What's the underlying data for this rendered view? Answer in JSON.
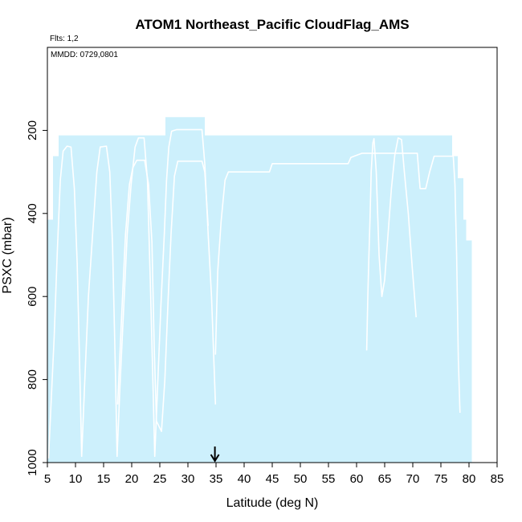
{
  "chart_data": {
    "type": "area",
    "title": "ATOM1 Northeast_Pacific CloudFlag_AMS",
    "subtitle": "Flts: 1,2",
    "annotation": "MMDD: 0729,0801",
    "xlabel": "Latitude (deg N)",
    "ylabel": "PSXC (mbar)",
    "xlim": [
      5,
      85
    ],
    "ylim": [
      1000,
      0
    ],
    "y_inverted": true,
    "xticks": [
      5,
      10,
      15,
      20,
      25,
      30,
      35,
      40,
      45,
      50,
      55,
      60,
      65,
      70,
      75,
      80,
      85
    ],
    "yticks": [
      200,
      400,
      600,
      800,
      1000
    ],
    "grid": false,
    "colors": {
      "cloud_fill": "#cdf0fc",
      "flight_track": "#ffffff",
      "marker": "#000000"
    },
    "cloud_columns": [
      {
        "x0": 5.0,
        "x1": 6.0,
        "top": 415
      },
      {
        "x0": 6.0,
        "x1": 7.0,
        "top": 262
      },
      {
        "x0": 7.0,
        "x1": 26.0,
        "top": 212
      },
      {
        "x0": 26.0,
        "x1": 33.0,
        "top": 168
      },
      {
        "x0": 33.0,
        "x1": 77.0,
        "top": 212
      },
      {
        "x0": 77.0,
        "x1": 78.0,
        "top": 262
      },
      {
        "x0": 78.0,
        "x1": 79.0,
        "top": 315
      },
      {
        "x0": 79.0,
        "x1": 79.5,
        "top": 415
      },
      {
        "x0": 79.5,
        "x1": 80.5,
        "top": 465
      }
    ],
    "series": [
      {
        "values": [
          [
            5.2,
            990
          ],
          [
            6.2,
            700
          ],
          [
            6.8,
            480
          ],
          [
            7.3,
            320
          ],
          [
            7.8,
            250
          ],
          [
            8.5,
            238
          ],
          [
            9.2,
            240
          ],
          [
            9.8,
            340
          ],
          [
            10.3,
            520
          ],
          [
            10.8,
            800
          ],
          [
            11.1,
            985
          ],
          [
            11.6,
            820
          ],
          [
            12.3,
            600
          ],
          [
            13.2,
            420
          ],
          [
            13.8,
            300
          ],
          [
            14.4,
            240
          ],
          [
            15.5,
            238
          ],
          [
            16.1,
            300
          ],
          [
            16.6,
            480
          ],
          [
            17.1,
            780
          ],
          [
            17.4,
            985
          ],
          [
            17.9,
            820
          ],
          [
            18.6,
            620
          ],
          [
            19.2,
            450
          ],
          [
            19.9,
            330
          ],
          [
            20.6,
            240
          ],
          [
            21.2,
            218
          ],
          [
            22.2,
            218
          ],
          [
            22.8,
            320
          ],
          [
            23.3,
            560
          ],
          [
            23.8,
            820
          ],
          [
            24.1,
            985
          ],
          [
            24.6,
            820
          ],
          [
            25.2,
            620
          ],
          [
            25.8,
            450
          ],
          [
            26.2,
            320
          ],
          [
            26.6,
            240
          ],
          [
            27.1,
            202
          ],
          [
            28.0,
            198
          ],
          [
            32.5,
            198
          ],
          [
            33.0,
            280
          ],
          [
            33.6,
            450
          ],
          [
            34.2,
            600
          ],
          [
            34.9,
            860
          ]
        ]
      },
      {
        "values": [
          [
            17.5,
            860
          ],
          [
            18.3,
            620
          ],
          [
            18.9,
            450
          ],
          [
            19.6,
            330
          ],
          [
            20.2,
            290
          ],
          [
            20.9,
            272
          ],
          [
            22.3,
            272
          ],
          [
            23.0,
            330
          ],
          [
            23.6,
            470
          ],
          [
            24.0,
            720
          ],
          [
            24.4,
            900
          ],
          [
            25.3,
            925
          ],
          [
            25.9,
            800
          ],
          [
            26.5,
            600
          ],
          [
            27.0,
            450
          ],
          [
            27.6,
            310
          ],
          [
            28.2,
            274
          ],
          [
            32.5,
            274
          ],
          [
            33.0,
            300
          ],
          [
            33.6,
            430
          ]
        ]
      },
      {
        "values": [
          [
            34.9,
            740
          ],
          [
            35.3,
            540
          ],
          [
            35.9,
            420
          ],
          [
            36.6,
            320
          ],
          [
            37.2,
            300
          ],
          [
            44.5,
            300
          ],
          [
            45.0,
            280
          ],
          [
            58.5,
            280
          ],
          [
            59.0,
            265
          ],
          [
            61.0,
            255
          ],
          [
            63.5,
            255
          ],
          [
            68.0,
            255
          ],
          [
            70.8,
            255
          ],
          [
            71.3,
            340
          ],
          [
            72.3,
            340
          ],
          [
            73.0,
            300
          ],
          [
            73.8,
            262
          ],
          [
            77.2,
            262
          ],
          [
            77.5,
            330
          ],
          [
            77.8,
            500
          ],
          [
            78.1,
            750
          ],
          [
            78.4,
            880
          ]
        ]
      },
      {
        "values": [
          [
            61.8,
            730
          ],
          [
            62.0,
            600
          ],
          [
            62.2,
            500
          ],
          [
            62.4,
            410
          ],
          [
            62.6,
            300
          ],
          [
            62.9,
            230
          ],
          [
            63.1,
            220
          ],
          [
            63.5,
            300
          ],
          [
            64.0,
            500
          ],
          [
            64.5,
            600
          ],
          [
            65.0,
            560
          ],
          [
            65.6,
            450
          ],
          [
            66.2,
            340
          ],
          [
            66.8,
            260
          ],
          [
            67.4,
            218
          ],
          [
            68.0,
            222
          ],
          [
            68.5,
            300
          ],
          [
            69.2,
            400
          ],
          [
            69.9,
            530
          ],
          [
            70.6,
            650
          ]
        ]
      }
    ],
    "marker": {
      "x": 34.8,
      "label": ""
    }
  }
}
